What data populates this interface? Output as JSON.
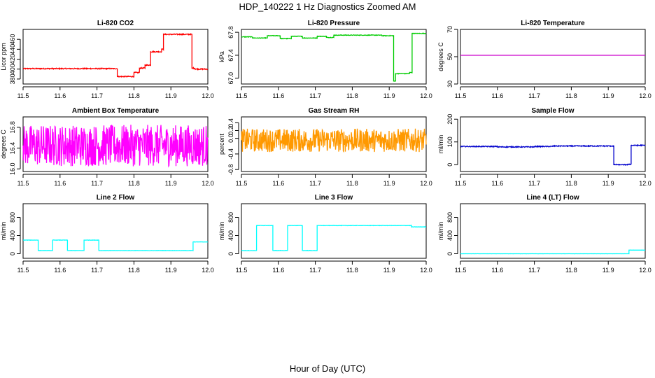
{
  "figure": {
    "title": "HDP_140222  1 Hz Diagnostics Zoomed AM",
    "xlabel": "Hour of Day (UTC)"
  },
  "chart_data": [
    {
      "type": "line",
      "title": "Li-820 CO2",
      "ylabel": "Licor ppm",
      "xlim": [
        11.5,
        12.0
      ],
      "ylim": [
        370,
        480
      ],
      "xticks": [
        "11.5",
        "11.6",
        "11.7",
        "11.8",
        "11.9",
        "12.0"
      ],
      "yticks": [
        "380",
        "400",
        "420",
        "440",
        "460"
      ],
      "color": "#ff0000",
      "series": [
        {
          "x": [
            11.5,
            11.755,
            11.755,
            11.8,
            11.8,
            11.815,
            11.815,
            11.83,
            11.83,
            11.845,
            11.845,
            11.875,
            11.875,
            11.88,
            11.88,
            11.957,
            11.957,
            11.965,
            11.965,
            12.0
          ],
          "y": [
            401,
            401,
            385,
            385,
            393,
            393,
            402,
            402,
            408,
            408,
            435,
            435,
            440,
            440,
            470,
            470,
            402,
            402,
            400,
            400
          ],
          "noise": 1.0
        }
      ]
    },
    {
      "type": "line",
      "title": "Li-820 Pressure",
      "ylabel": "kPa",
      "xlim": [
        11.5,
        12.0
      ],
      "ylim": [
        66.9,
        67.85
      ],
      "xticks": [
        "11.5",
        "11.6",
        "11.7",
        "11.8",
        "11.9",
        "12.0"
      ],
      "yticks": [
        "67.0",
        "67.4",
        "67.8"
      ],
      "color": "#00cc00",
      "series": [
        {
          "x": [
            11.5,
            11.53,
            11.53,
            11.57,
            11.57,
            11.605,
            11.605,
            11.635,
            11.635,
            11.665,
            11.665,
            11.705,
            11.705,
            11.73,
            11.73,
            11.75,
            11.75,
            11.88,
            11.88,
            11.912,
            11.912,
            11.917,
            11.917,
            11.955,
            11.955,
            11.962,
            11.962,
            12.0
          ],
          "y": [
            67.72,
            67.72,
            67.7,
            67.7,
            67.74,
            67.74,
            67.69,
            67.69,
            67.73,
            67.73,
            67.7,
            67.7,
            67.73,
            67.73,
            67.71,
            67.71,
            67.75,
            67.75,
            67.74,
            67.74,
            66.95,
            66.95,
            67.08,
            67.08,
            67.1,
            67.1,
            67.78,
            67.78
          ],
          "noise": 0.005
        }
      ]
    },
    {
      "type": "line",
      "title": "Li-820 Temperature",
      "ylabel": "degrees C",
      "xlim": [
        11.5,
        12.0
      ],
      "ylim": [
        30,
        70
      ],
      "xticks": [
        "11.5",
        "11.6",
        "11.7",
        "11.8",
        "11.9",
        "12.0"
      ],
      "yticks": [
        "30",
        "50",
        "70"
      ],
      "color": "#cc00cc",
      "series": [
        {
          "x": [
            11.5,
            12.0
          ],
          "y": [
            51,
            51
          ],
          "noise": 0
        }
      ]
    },
    {
      "type": "line",
      "title": "Ambient Box Temperature",
      "ylabel": "degrees C",
      "xlim": [
        11.5,
        12.0
      ],
      "ylim": [
        15.95,
        17.0
      ],
      "xticks": [
        "11.5",
        "11.6",
        "11.7",
        "11.8",
        "11.9",
        "12.0"
      ],
      "yticks": [
        "16.0",
        "16.4",
        "16.8"
      ],
      "color": "#ff00ff",
      "series": [
        {
          "x": [
            11.5,
            12.0
          ],
          "y": [
            16.45,
            16.45
          ],
          "noise": 0.4
        }
      ]
    },
    {
      "type": "line",
      "title": "Gas Stream RH",
      "ylabel": "percent",
      "xlim": [
        11.5,
        12.0
      ],
      "ylim": [
        -0.85,
        0.55
      ],
      "xticks": [
        "11.5",
        "11.6",
        "11.7",
        "11.8",
        "11.9",
        "12.0"
      ],
      "yticks": [
        "-0.8",
        "-0.4",
        "0.0",
        "0.2",
        "0.4"
      ],
      "color": "#ff9900",
      "series": [
        {
          "x": [
            11.5,
            12.0
          ],
          "y": [
            -0.05,
            -0.05
          ],
          "noise": 0.3
        }
      ]
    },
    {
      "type": "line",
      "title": "Sample Flow",
      "ylabel": "ml/min",
      "xlim": [
        11.5,
        12.0
      ],
      "ylim": [
        -30,
        210
      ],
      "xticks": [
        "11.5",
        "11.6",
        "11.7",
        "11.8",
        "11.9",
        "12.0"
      ],
      "yticks": [
        "0",
        "100",
        "200"
      ],
      "color": "#0000cc",
      "series": [
        {
          "x": [
            11.5,
            11.6,
            11.6,
            11.7,
            11.7,
            11.75,
            11.75,
            11.915,
            11.915,
            11.955,
            11.955,
            11.962,
            11.962,
            12.0
          ],
          "y": [
            80,
            80,
            78,
            78,
            80,
            80,
            82,
            82,
            0,
            0,
            2,
            2,
            85,
            85
          ],
          "noise": 2.0
        }
      ]
    },
    {
      "type": "line",
      "title": "Line 2 Flow",
      "ylabel": "ml/min",
      "xlim": [
        11.5,
        12.0
      ],
      "ylim": [
        -100,
        1100
      ],
      "xticks": [
        "11.5",
        "11.6",
        "11.7",
        "11.8",
        "11.9",
        "12.0"
      ],
      "yticks": [
        "0",
        "400",
        "800"
      ],
      "color": "#00ffff",
      "series": [
        {
          "x": [
            11.5,
            11.541,
            11.541,
            11.58,
            11.58,
            11.62,
            11.62,
            11.665,
            11.665,
            11.705,
            11.705,
            11.96,
            11.96,
            12.0
          ],
          "y": [
            300,
            300,
            70,
            70,
            300,
            300,
            70,
            70,
            300,
            300,
            70,
            70,
            260,
            260
          ],
          "noise": 3
        }
      ]
    },
    {
      "type": "line",
      "title": "Line 3 Flow",
      "ylabel": "ml/min",
      "xlim": [
        11.5,
        12.0
      ],
      "ylim": [
        -100,
        1100
      ],
      "xticks": [
        "11.5",
        "11.6",
        "11.7",
        "11.8",
        "11.9",
        "12.0"
      ],
      "yticks": [
        "0",
        "400",
        "800"
      ],
      "color": "#00ffff",
      "series": [
        {
          "x": [
            11.5,
            11.541,
            11.541,
            11.585,
            11.585,
            11.625,
            11.625,
            11.665,
            11.665,
            11.705,
            11.705,
            11.96,
            11.96,
            12.0
          ],
          "y": [
            70,
            70,
            620,
            620,
            70,
            70,
            620,
            620,
            70,
            70,
            620,
            620,
            590,
            590
          ],
          "noise": 4
        }
      ]
    },
    {
      "type": "line",
      "title": "Line 4 (LT) Flow",
      "ylabel": "ml/min",
      "xlim": [
        11.5,
        12.0
      ],
      "ylim": [
        -100,
        1100
      ],
      "xticks": [
        "11.5",
        "11.6",
        "11.7",
        "11.8",
        "11.9",
        "12.0"
      ],
      "yticks": [
        "0",
        "400",
        "800"
      ],
      "color": "#00ffff",
      "series": [
        {
          "x": [
            11.5,
            11.956,
            11.956,
            12.0
          ],
          "y": [
            0,
            0,
            80,
            80
          ],
          "noise": 1
        }
      ]
    }
  ]
}
